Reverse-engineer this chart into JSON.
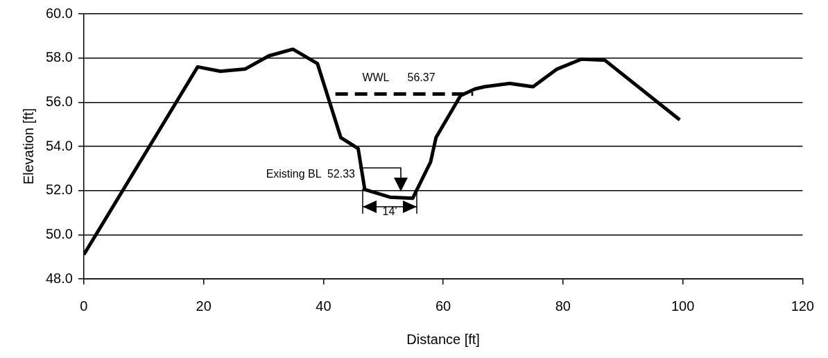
{
  "chart_data": {
    "type": "line",
    "xlabel": "Distance [ft]",
    "ylabel": "Elevation [ft]",
    "xlim": [
      0,
      120
    ],
    "xticks": [
      0,
      20,
      40,
      60,
      80,
      100,
      120
    ],
    "ylim": [
      48,
      60
    ],
    "yticks": [
      {
        "value": 48,
        "label": "48.0"
      },
      {
        "value": 50,
        "label": "50.0"
      },
      {
        "value": 52,
        "label": "52.0"
      },
      {
        "value": 54,
        "label": "54.0"
      },
      {
        "value": 56,
        "label": "56.0"
      },
      {
        "value": 58,
        "label": "58.0"
      },
      {
        "value": 60,
        "label": "60.0"
      }
    ],
    "grid": "y",
    "legend": false,
    "marker": "none",
    "series": [
      {
        "color": "#000000",
        "line_style": "solid",
        "x": [
          0,
          19,
          22.8,
          26.9,
          30.9,
          34.9,
          39,
          42.9,
          45.8,
          46.9,
          51.1,
          54.9,
          57.9,
          58.8,
          62.9,
          65.3,
          66.9,
          71.1,
          75,
          79,
          83.1,
          87,
          99.5
        ],
        "values": [
          49.1,
          57.6,
          57.4,
          57.5,
          58.1,
          58.4,
          57.75,
          54.4,
          53.9,
          52.05,
          51.7,
          51.65,
          53.3,
          54.4,
          56.3,
          56.6,
          56.7,
          56.85,
          56.7,
          57.5,
          57.95,
          57.9,
          55.2
        ]
      },
      {
        "color": "#000000",
        "line_style": "dashed",
        "x": [
          42,
          65
        ],
        "values": [
          56.37,
          56.37
        ]
      }
    ],
    "annotations": [
      "WWL      56.37",
      "Existing BL  52.33",
      "14'"
    ]
  }
}
